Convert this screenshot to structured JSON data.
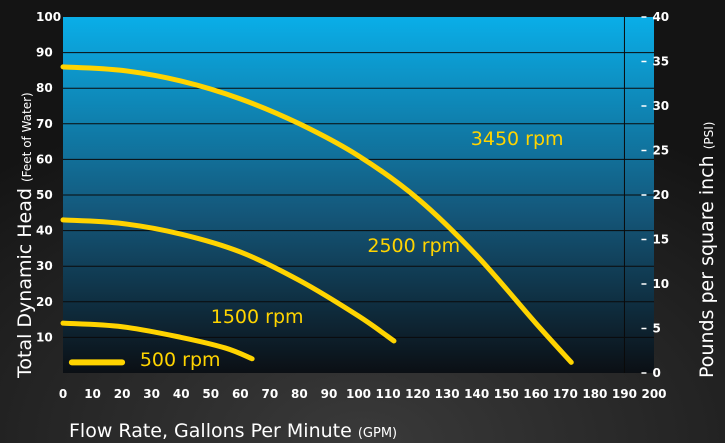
{
  "chart_data": {
    "type": "line",
    "xlabel": "Flow Rate, Gallons Per Minute",
    "xlabel_unit": "(GPM)",
    "ylabel": "Total Dynamic Head",
    "ylabel_unit": "(Feet of Water)",
    "y2label": "Pounds per square inch",
    "y2label_unit": "(PSI)",
    "xlim": [
      0,
      200
    ],
    "ylim": [
      0,
      100
    ],
    "y2lim": [
      0,
      40
    ],
    "x_ticks": [
      "0",
      "10",
      "20",
      "30",
      "40",
      "50",
      "60",
      "70",
      "80",
      "90",
      "100",
      "110",
      "120",
      "130",
      "140",
      "150",
      "160",
      "170",
      "180",
      "190",
      "200"
    ],
    "y_ticks": [
      "100",
      "90",
      "80",
      "70",
      "60",
      "50",
      "40",
      "30",
      "20",
      "10"
    ],
    "y2_ticks": [
      "40",
      "35",
      "30",
      "25",
      "20",
      "15",
      "10",
      "5",
      "0"
    ],
    "grid": "horizontal",
    "series": [
      {
        "name": "3450 rpm",
        "x": [
          0,
          20,
          40,
          60,
          80,
          100,
          120,
          140,
          160,
          172
        ],
        "y": [
          86,
          85,
          82,
          77,
          70,
          61,
          49,
          33,
          14,
          3
        ]
      },
      {
        "name": "2500 rpm",
        "x": [
          0,
          20,
          40,
          60,
          80,
          100,
          112
        ],
        "y": [
          43,
          42,
          39,
          34,
          26,
          16,
          9
        ]
      },
      {
        "name": "1500 rpm",
        "x": [
          0,
          20,
          40,
          55,
          64
        ],
        "y": [
          14,
          13,
          10,
          7,
          4
        ]
      },
      {
        "name": "500 rpm",
        "x": [
          3,
          20
        ],
        "y": [
          3,
          3
        ]
      }
    ],
    "colors": {
      "curve": "#ffd400",
      "plot_top": "#0aaee8",
      "plot_mid": "#14577a",
      "plot_bottom": "#0b0f14",
      "background": "#1a1a1a",
      "text": "#ffffff"
    }
  }
}
